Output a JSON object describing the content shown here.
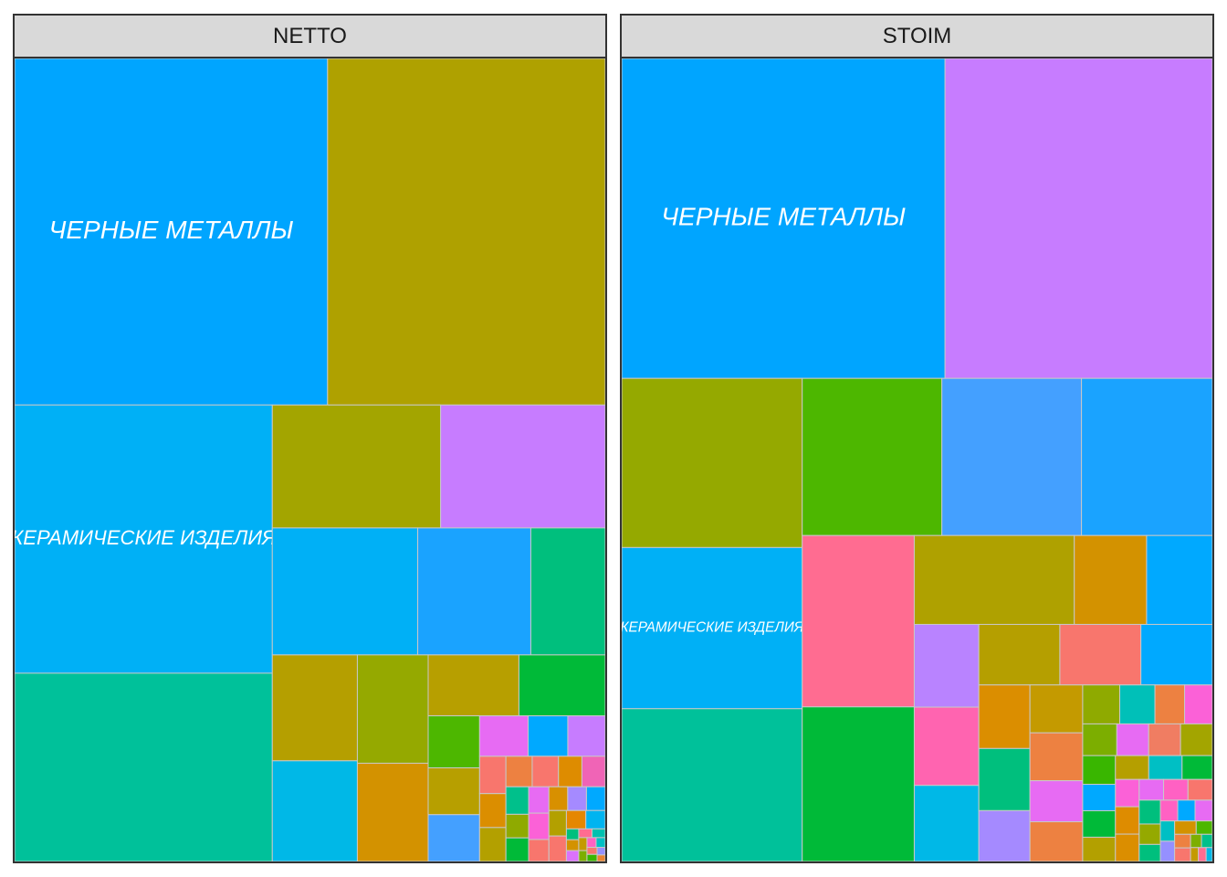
{
  "chart_data": {
    "type": "treemap",
    "facets": [
      {
        "name": "NETTO",
        "labels": [
          "ЧЕРНЫЕ МЕТАЛЛЫ",
          "КЕРАМИЧЕСКИЕ ИЗДЕЛИЯ"
        ],
        "tiles": [
          {
            "value": 107900,
            "color": "#AFA100"
          },
          {
            "value": 121600,
            "color": "#00A5FF",
            "label": 0
          },
          {
            "value": 20700,
            "color": "#00B0F6"
          },
          {
            "value": 23200,
            "color": "#A3A500"
          },
          {
            "value": 22700,
            "color": "#C77CFF"
          },
          {
            "value": 77500,
            "color": "#00B0F6",
            "label": 1
          },
          {
            "value": 54400,
            "color": "#00C19A"
          },
          {
            "value": 5900,
            "color": "#00BA38"
          },
          {
            "value": 6200,
            "color": "#B79F00"
          },
          {
            "value": 7800,
            "color": "#D39200"
          },
          {
            "value": 10100,
            "color": "#B59F00"
          },
          {
            "value": 9600,
            "color": "#00B8E7"
          },
          {
            "value": 8600,
            "color": "#95A900"
          },
          {
            "value": 16100,
            "color": "#1AA3FF"
          },
          {
            "value": 10600,
            "color": "#00BF7D"
          },
          {
            "value": 1800,
            "color": "#00A9FF"
          },
          {
            "value": 2200,
            "color": "#E76BF3"
          },
          {
            "value": 2700,
            "color": "#B79F00"
          },
          {
            "value": 3000,
            "color": "#4DB700"
          },
          {
            "value": 2700,
            "color": "#44A0FF"
          },
          {
            "value": 1700,
            "color": "#C77CFF"
          },
          {
            "value": 900,
            "color": "#ED8141"
          },
          {
            "value": 1000,
            "color": "#DB8E00"
          },
          {
            "value": 800,
            "color": "#DE8C00"
          },
          {
            "value": 1100,
            "color": "#F8766D"
          },
          {
            "value": 1000,
            "color": "#B3A000"
          },
          {
            "value": 800,
            "color": "#F064B6"
          },
          {
            "value": 900,
            "color": "#F8766D"
          },
          {
            "value": 500,
            "color": "#F8766D"
          },
          {
            "value": 600,
            "color": "#8FAA00"
          },
          {
            "value": 700,
            "color": "#00C08B"
          },
          {
            "value": 600,
            "color": "#00BA38"
          },
          {
            "value": 500,
            "color": "#D89000"
          },
          {
            "value": 400,
            "color": "#E58700"
          },
          {
            "value": 500,
            "color": "#A58AFF"
          },
          {
            "value": 500,
            "color": "#00A9FF"
          },
          {
            "value": 500,
            "color": "#B3A000"
          },
          {
            "value": 400,
            "color": "#00B4F0"
          },
          {
            "value": 600,
            "color": "#E76BF3"
          },
          {
            "value": 600,
            "color": "#FB61D7"
          },
          {
            "value": 500,
            "color": "#F8766D"
          },
          {
            "value": 150,
            "color": "#00BF7D"
          },
          {
            "value": 150,
            "color": "#D39200"
          },
          {
            "value": 150,
            "color": "#DB72FB"
          },
          {
            "value": 130,
            "color": "#FF6C91"
          },
          {
            "value": 130,
            "color": "#00C0AF"
          },
          {
            "value": 120,
            "color": "#C49A00"
          },
          {
            "value": 100,
            "color": "#7CAE00"
          },
          {
            "value": 100,
            "color": "#FF61C3"
          },
          {
            "value": 100,
            "color": "#00BFC4"
          },
          {
            "value": 80,
            "color": "#F8766D"
          },
          {
            "value": 80,
            "color": "#39B600"
          },
          {
            "value": 70,
            "color": "#9590FF"
          },
          {
            "value": 60,
            "color": "#EA8331"
          }
        ]
      },
      {
        "name": "STOIM",
        "labels": [
          "ЧЕРНЫЕ МЕТАЛЛЫ",
          "КЕРАМИЧЕСКИЕ ИЗДЕЛИЯ"
        ],
        "tiles": [
          {
            "value": 118500,
            "color": "#C77CFF"
          },
          {
            "value": 143300,
            "color": "#00A5FF",
            "label": 0
          },
          {
            "value": 30400,
            "color": "#4DB700"
          },
          {
            "value": 30400,
            "color": "#44A0FF"
          },
          {
            "value": 26600,
            "color": "#FF6C91"
          },
          {
            "value": 19700,
            "color": "#AFA100"
          },
          {
            "value": 38200,
            "color": "#00C19A"
          },
          {
            "value": 28500,
            "color": "#1AA3FF"
          },
          {
            "value": 24000,
            "color": "#00BA38"
          },
          {
            "value": 42300,
            "color": "#95A900"
          },
          {
            "value": 40300,
            "color": "#00B0F6",
            "label": 1
          },
          {
            "value": 7000,
            "color": "#FF64B0"
          },
          {
            "value": 7400,
            "color": "#B983FF"
          },
          {
            "value": 8100,
            "color": "#00A9FF"
          },
          {
            "value": 8900,
            "color": "#D39200"
          },
          {
            "value": 6800,
            "color": "#00B8E7"
          },
          {
            "value": 6800,
            "color": "#B59F00"
          },
          {
            "value": 6800,
            "color": "#F8766D"
          },
          {
            "value": 6000,
            "color": "#00A9FF"
          },
          {
            "value": 3600,
            "color": "#A58AFF"
          },
          {
            "value": 4500,
            "color": "#DB8E00"
          },
          {
            "value": 4400,
            "color": "#00BF7D"
          },
          {
            "value": 3500,
            "color": "#C49A00"
          },
          {
            "value": 3500,
            "color": "#ED8141"
          },
          {
            "value": 2900,
            "color": "#ED8141"
          },
          {
            "value": 3000,
            "color": "#E76BF3"
          },
          {
            "value": 1300,
            "color": "#39B600"
          },
          {
            "value": 1900,
            "color": "#00C0B8"
          },
          {
            "value": 1600,
            "color": "#ED8141"
          },
          {
            "value": 2000,
            "color": "#8FAA00"
          },
          {
            "value": 1000,
            "color": "#00BA38"
          },
          {
            "value": 1100,
            "color": "#B3A000"
          },
          {
            "value": 1200,
            "color": "#00A9FF"
          },
          {
            "value": 1100,
            "color": "#B59F00"
          },
          {
            "value": 1500,
            "color": "#FB61D7"
          },
          {
            "value": 1500,
            "color": "#7CAE00"
          },
          {
            "value": 1400,
            "color": "#E76BF3"
          },
          {
            "value": 1400,
            "color": "#F07D62"
          },
          {
            "value": 1400,
            "color": "#A3A500"
          },
          {
            "value": 900,
            "color": "#FB61D7"
          },
          {
            "value": 1200,
            "color": "#00BA38"
          },
          {
            "value": 1100,
            "color": "#00BFC4"
          },
          {
            "value": 900,
            "color": "#DE8C00"
          },
          {
            "value": 900,
            "color": "#DB8E00"
          },
          {
            "value": 700,
            "color": "#E76BF3"
          },
          {
            "value": 700,
            "color": "#FF61C3"
          },
          {
            "value": 700,
            "color": "#F8766D"
          },
          {
            "value": 700,
            "color": "#00BF7D"
          },
          {
            "value": 600,
            "color": "#95A900"
          },
          {
            "value": 500,
            "color": "#00BF7D"
          },
          {
            "value": 500,
            "color": "#FF61C3"
          },
          {
            "value": 500,
            "color": "#00A9FF"
          },
          {
            "value": 500,
            "color": "#E76BF3"
          },
          {
            "value": 400,
            "color": "#00BFC4"
          },
          {
            "value": 400,
            "color": "#9590FF"
          },
          {
            "value": 400,
            "color": "#D39200"
          },
          {
            "value": 300,
            "color": "#4DB700"
          },
          {
            "value": 300,
            "color": "#ED8141"
          },
          {
            "value": 300,
            "color": "#F8766D"
          },
          {
            "value": 200,
            "color": "#7CAE00"
          },
          {
            "value": 200,
            "color": "#00C08B"
          },
          {
            "value": 150,
            "color": "#C49A00"
          },
          {
            "value": 150,
            "color": "#FF6C91"
          },
          {
            "value": 120,
            "color": "#00B8E7"
          }
        ]
      }
    ]
  }
}
